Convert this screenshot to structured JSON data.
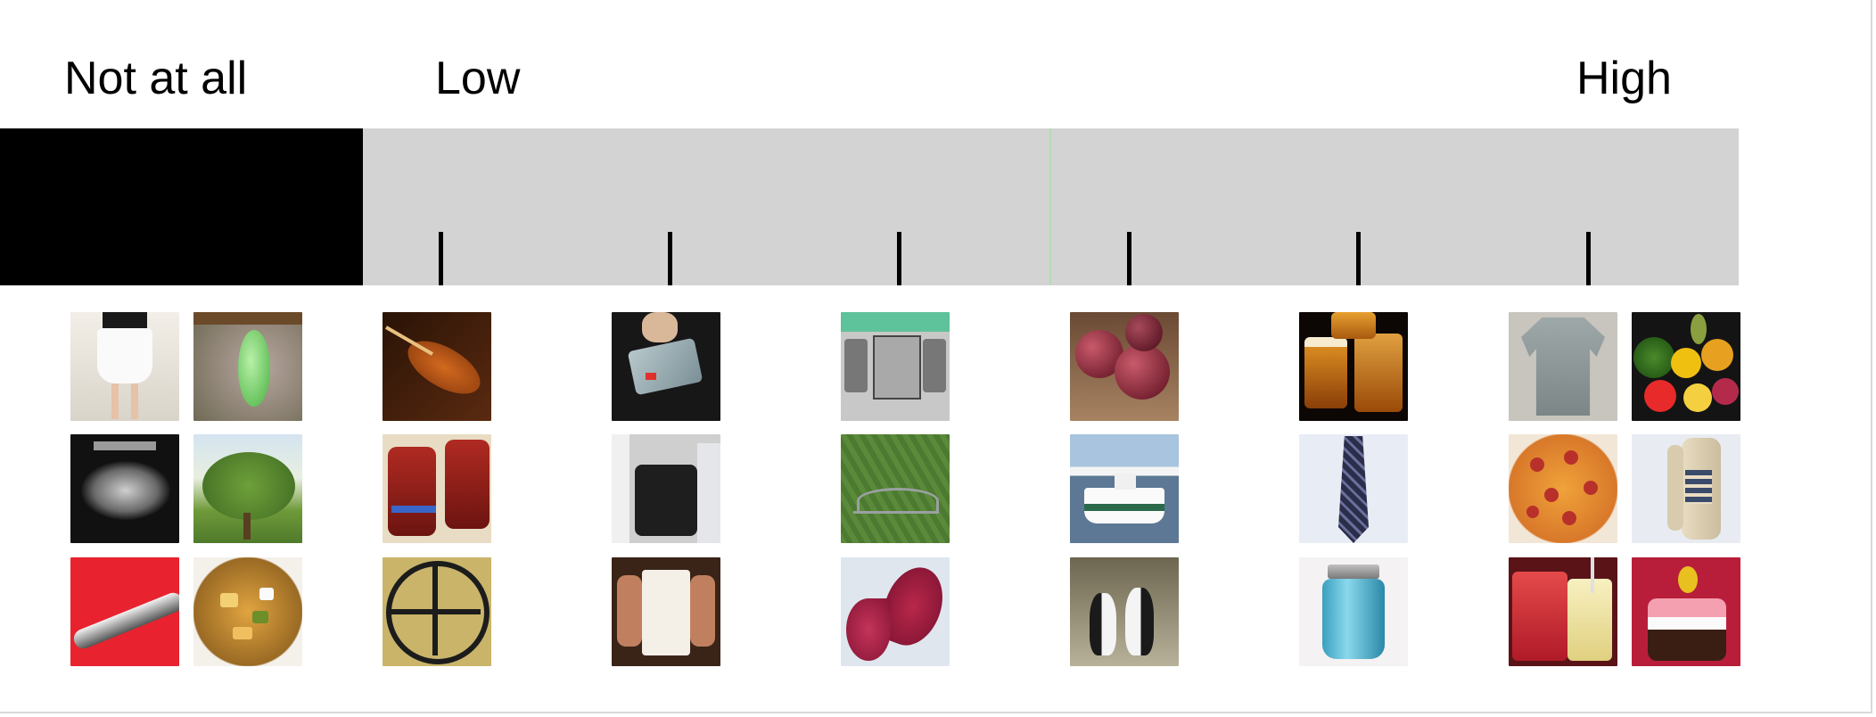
{
  "scale": {
    "labels": {
      "not_at_all": "Not at all",
      "low": "Low",
      "high": "High"
    },
    "ticks": 6
  },
  "colors": {
    "scale_background": "#d3d3d3",
    "not_at_all_block": "#000000",
    "tick": "#000000"
  },
  "image_groups": [
    {
      "category": "not-at-all",
      "images": [
        "skirt",
        "chrysalis",
        "ultrasound",
        "apple-tree",
        "spoon",
        "stew"
      ]
    },
    {
      "category": "low-1",
      "images": [
        "violin",
        "ski-boots",
        "steering-wheel"
      ]
    },
    {
      "category": "low-2",
      "images": [
        "credit-card",
        "car-door",
        "tank-top"
      ]
    },
    {
      "category": "low-3",
      "images": [
        "stereo",
        "hanger",
        "rose-petals"
      ]
    },
    {
      "category": "high-1",
      "images": [
        "plums",
        "ferry",
        "penguins"
      ]
    },
    {
      "category": "high-2",
      "images": [
        "beer",
        "necktie",
        "mason-jar"
      ]
    },
    {
      "category": "high-3",
      "images": [
        "shirt",
        "fruit",
        "pizza",
        "telephone",
        "drinks",
        "cake"
      ]
    }
  ]
}
